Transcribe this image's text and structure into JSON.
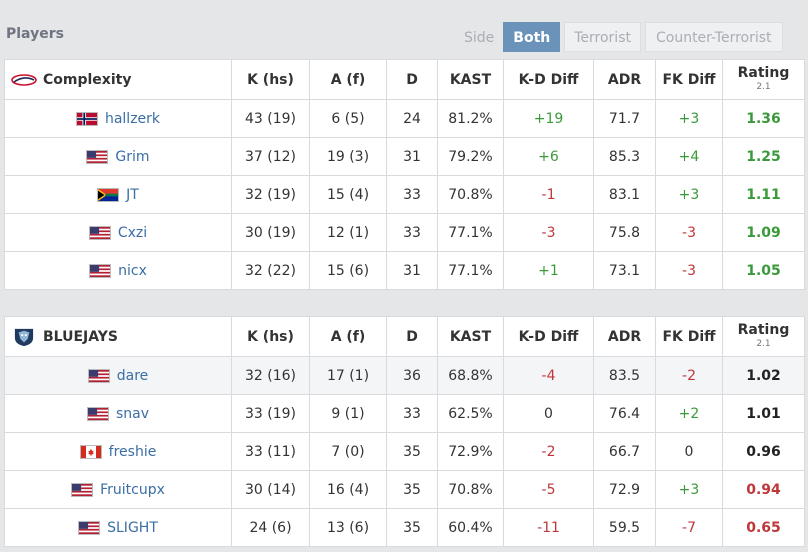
{
  "header": {
    "title": "Players",
    "tabs": [
      {
        "label": "Side",
        "active": false
      },
      {
        "label": "Both",
        "active": true
      },
      {
        "label": "Terrorist",
        "active": false
      },
      {
        "label": "Counter-Terrorist",
        "active": false
      }
    ]
  },
  "columns": [
    "K (hs)",
    "A (f)",
    "D",
    "KAST",
    "K-D Diff",
    "ADR",
    "FK Diff",
    "Rating"
  ],
  "rating_version": "2.1",
  "colors": {
    "positive": "#3a9a3a",
    "negative": "#c0373a",
    "accent": "#6b93ba",
    "link": "#3a6ea5"
  },
  "teams": [
    {
      "name": "Complexity",
      "logo": "complexity-logo-icon",
      "players": [
        {
          "name": "hallzerk",
          "flag": "norway-flag-icon",
          "k": "43 (19)",
          "a": "6 (5)",
          "d": "24",
          "kast": "81.2%",
          "kd": "+19",
          "adr": "71.7",
          "fk": "+3",
          "rating": "1.36"
        },
        {
          "name": "Grim",
          "flag": "usa-flag-icon",
          "k": "37 (12)",
          "a": "19 (3)",
          "d": "31",
          "kast": "79.2%",
          "kd": "+6",
          "adr": "85.3",
          "fk": "+4",
          "rating": "1.25"
        },
        {
          "name": "JT",
          "flag": "south-africa-flag-icon",
          "k": "32 (19)",
          "a": "15 (4)",
          "d": "33",
          "kast": "70.8%",
          "kd": "-1",
          "adr": "83.1",
          "fk": "+3",
          "rating": "1.11"
        },
        {
          "name": "Cxzi",
          "flag": "usa-flag-icon",
          "k": "30 (19)",
          "a": "12 (1)",
          "d": "33",
          "kast": "77.1%",
          "kd": "-3",
          "adr": "75.8",
          "fk": "-3",
          "rating": "1.09"
        },
        {
          "name": "nicx",
          "flag": "usa-flag-icon",
          "k": "32 (22)",
          "a": "15 (6)",
          "d": "31",
          "kast": "77.1%",
          "kd": "+1",
          "adr": "73.1",
          "fk": "-3",
          "rating": "1.05"
        }
      ]
    },
    {
      "name": "BLUEJAYS",
      "logo": "bluejays-logo-icon",
      "players": [
        {
          "name": "dare",
          "flag": "usa-flag-icon",
          "k": "32 (16)",
          "a": "17 (1)",
          "d": "36",
          "kast": "68.8%",
          "kd": "-4",
          "adr": "83.5",
          "fk": "-2",
          "rating": "1.02"
        },
        {
          "name": "snav",
          "flag": "usa-flag-icon",
          "k": "33 (19)",
          "a": "9 (1)",
          "d": "33",
          "kast": "62.5%",
          "kd": "0",
          "adr": "76.4",
          "fk": "+2",
          "rating": "1.01"
        },
        {
          "name": "freshie",
          "flag": "canada-flag-icon",
          "k": "33 (11)",
          "a": "7 (0)",
          "d": "35",
          "kast": "72.9%",
          "kd": "-2",
          "adr": "66.7",
          "fk": "0",
          "rating": "0.96"
        },
        {
          "name": "Fruitcupx",
          "flag": "usa-flag-icon",
          "k": "30 (14)",
          "a": "16 (4)",
          "d": "35",
          "kast": "70.8%",
          "kd": "-5",
          "adr": "72.9",
          "fk": "+3",
          "rating": "0.94"
        },
        {
          "name": "SLIGHT",
          "flag": "usa-flag-icon",
          "k": "24 (6)",
          "a": "13 (6)",
          "d": "35",
          "kast": "60.4%",
          "kd": "-11",
          "adr": "59.5",
          "fk": "-7",
          "rating": "0.65"
        }
      ]
    }
  ]
}
